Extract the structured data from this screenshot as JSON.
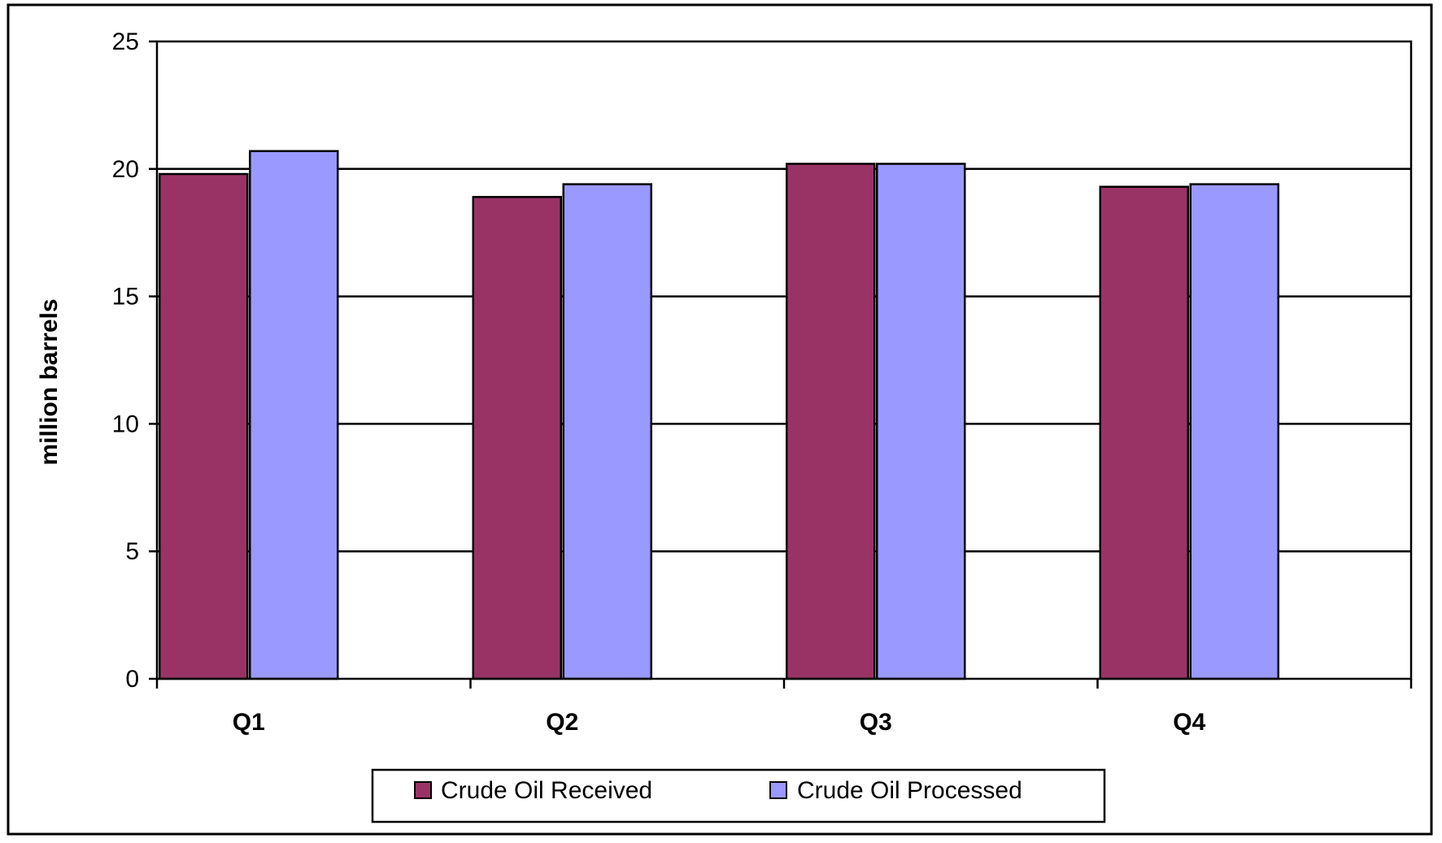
{
  "chart_data": {
    "type": "bar",
    "title": "",
    "xlabel": "",
    "ylabel": "million barrels",
    "categories": [
      "Q1",
      "Q2",
      "Q3",
      "Q4"
    ],
    "yticks": [
      "0",
      "5",
      "10",
      "15",
      "20",
      "25"
    ],
    "ylim": [
      0,
      25
    ],
    "grid": true,
    "legend_position": "bottom-center",
    "series": [
      {
        "name": "Crude Oil Received",
        "color": "#993366",
        "values": [
          19.8,
          18.9,
          20.2,
          19.3
        ]
      },
      {
        "name": "Crude Oil Processed",
        "color": "#9999ff",
        "values": [
          20.7,
          19.4,
          20.2,
          19.4
        ]
      }
    ]
  }
}
